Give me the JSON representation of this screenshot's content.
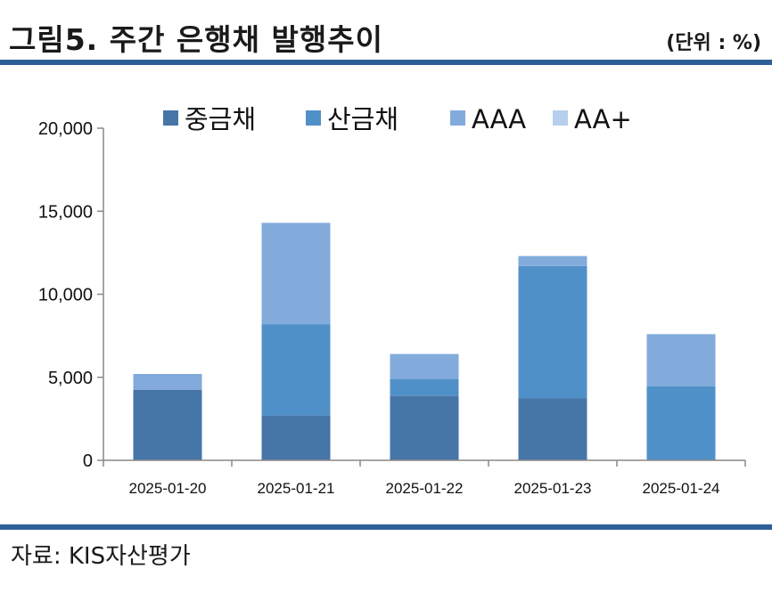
{
  "header": {
    "title": "그림5. 주간 은행채 발행추이",
    "unit": "(단위 : %)"
  },
  "footer": {
    "source": "자료: KIS자산평가"
  },
  "colors": {
    "rule": "#2f5f98",
    "axis": "#888888"
  },
  "chart_data": {
    "type": "bar",
    "stacked": true,
    "categories": [
      "2025-01-20",
      "2025-01-21",
      "2025-01-22",
      "2025-01-23",
      "2025-01-24"
    ],
    "series": [
      {
        "name": "중금채",
        "color": "#4675a8",
        "values": [
          4250,
          2700,
          3900,
          3750,
          0
        ]
      },
      {
        "name": "산금채",
        "color": "#5090c8",
        "values": [
          0,
          5500,
          1000,
          7950,
          4450
        ]
      },
      {
        "name": "AAA",
        "color": "#82abdc",
        "values": [
          950,
          6100,
          1500,
          600,
          3150
        ]
      },
      {
        "name": "AA+",
        "color": "#b6cfec",
        "values": [
          0,
          0,
          0,
          0,
          0
        ]
      }
    ],
    "ylim": [
      0,
      20000
    ],
    "yticks": [
      0,
      5000,
      10000,
      15000,
      20000
    ],
    "ytick_labels": [
      "0",
      "5,000",
      "10,000",
      "15,000",
      "20,000"
    ],
    "legend": "top",
    "grid": false
  }
}
